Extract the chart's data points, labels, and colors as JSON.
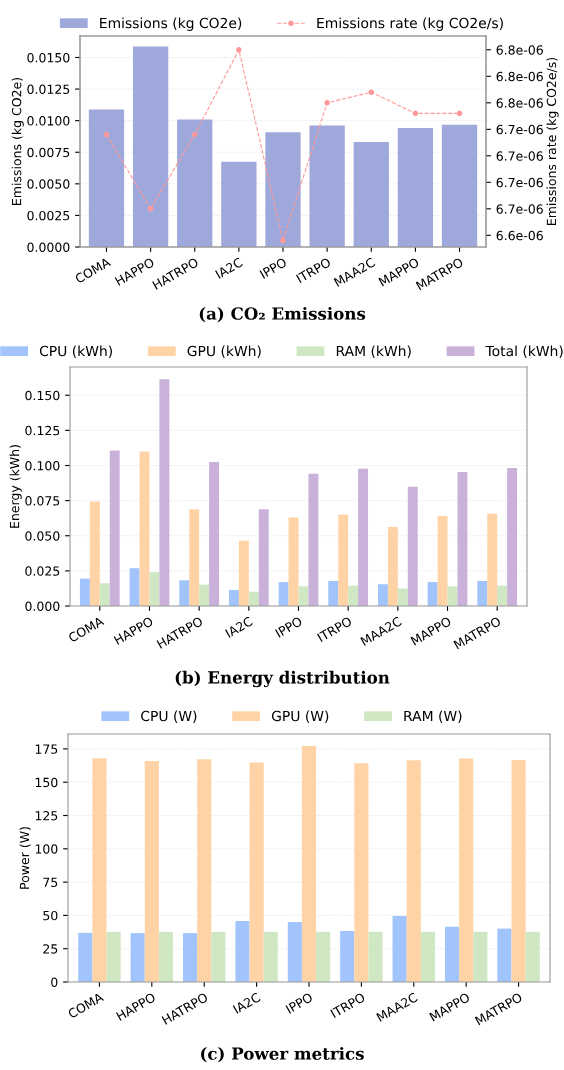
{
  "chart_data": [
    {
      "type": "bar",
      "title": "(a) CO₂ Emissions",
      "ylabel": "Emissions (kg CO2e)",
      "y2label": "Emissions rate (kg CO2e/s)",
      "categories": [
        "COMA",
        "HAPPO",
        "HATRPO",
        "IA2C",
        "IPPO",
        "ITRPO",
        "MAA2C",
        "MAPPO",
        "MATRPO"
      ],
      "series": [
        {
          "name": "Emissions (kg CO2e)",
          "type": "bar",
          "color": "#9fa8da",
          "values": [
            0.01088,
            0.01587,
            0.01009,
            0.00674,
            0.00908,
            0.00961,
            0.00832,
            0.00942,
            0.00967
          ]
        },
        {
          "name": "Emissions rate (kg CO2e/s)",
          "type": "line",
          "axis": "y2",
          "color": "#ff9999",
          "marker": "circle",
          "line_style": "dashed",
          "values": [
            6.72e-06,
            6.65e-06,
            6.72e-06,
            6.8e-06,
            6.62e-06,
            6.75e-06,
            6.76e-06,
            6.74e-06,
            6.74e-06
          ]
        }
      ],
      "ylim": [
        0,
        0.0167
      ],
      "yticks": [
        {
          "value": 0,
          "label": "0.0000"
        },
        {
          "value": 0.0025,
          "label": "0.0025"
        },
        {
          "value": 0.005,
          "label": "0.0050"
        },
        {
          "value": 0.0075,
          "label": "0.0075"
        },
        {
          "value": 0.01,
          "label": "0.0100"
        },
        {
          "value": 0.0125,
          "label": "0.0125"
        },
        {
          "value": 0.015,
          "label": "0.0150"
        }
      ],
      "y2lim": [
        6.614e-06,
        6.813e-06
      ],
      "y2ticks": [
        {
          "value": 6.625e-06,
          "label": "6.6e-06"
        },
        {
          "value": 6.65e-06,
          "label": "6.7e-06"
        },
        {
          "value": 6.675e-06,
          "label": "6.7e-06"
        },
        {
          "value": 6.7e-06,
          "label": "6.7e-06"
        },
        {
          "value": 6.725e-06,
          "label": "6.7e-06"
        },
        {
          "value": 6.75e-06,
          "label": "6.8e-06"
        },
        {
          "value": 6.775e-06,
          "label": "6.8e-06"
        },
        {
          "value": 6.8e-06,
          "label": "6.8e-06"
        }
      ],
      "grid": "y",
      "legend": "top"
    },
    {
      "type": "bar",
      "title": "(b) Energy distribution",
      "ylabel": "Energy (kWh)",
      "categories": [
        "COMA",
        "HAPPO",
        "HATRPO",
        "IA2C",
        "IPPO",
        "ITRPO",
        "MAA2C",
        "MAPPO",
        "MATRPO"
      ],
      "series": [
        {
          "name": "CPU (kWh)",
          "color": "#a1c4fd",
          "values": [
            0.0195,
            0.0269,
            0.0183,
            0.0114,
            0.017,
            0.0178,
            0.0155,
            0.017,
            0.0178
          ]
        },
        {
          "name": "GPU (kWh)",
          "color": "#ffd3a5",
          "values": [
            0.0744,
            0.1099,
            0.0688,
            0.0464,
            0.0629,
            0.0652,
            0.0563,
            0.064,
            0.0657
          ]
        },
        {
          "name": "RAM (kWh)",
          "color": "#cfe7c3",
          "values": [
            0.0162,
            0.0241,
            0.0152,
            0.0102,
            0.014,
            0.0145,
            0.0124,
            0.014,
            0.0145
          ]
        },
        {
          "name": "Total (kWh)",
          "color": "#c9b1da",
          "values": [
            0.1107,
            0.1614,
            0.1025,
            0.0688,
            0.0942,
            0.0977,
            0.0848,
            0.0954,
            0.0982
          ]
        }
      ],
      "ylim": [
        0,
        0.1701
      ],
      "yticks": [
        {
          "value": 0,
          "label": "0.000"
        },
        {
          "value": 0.025,
          "label": "0.025"
        },
        {
          "value": 0.05,
          "label": "0.050"
        },
        {
          "value": 0.075,
          "label": "0.075"
        },
        {
          "value": 0.1,
          "label": "0.100"
        },
        {
          "value": 0.125,
          "label": "0.125"
        },
        {
          "value": 0.15,
          "label": "0.150"
        }
      ],
      "grid": "y",
      "legend": "top"
    },
    {
      "type": "bar",
      "title": "(c) Power metrics",
      "ylabel": "Power (W)",
      "categories": [
        "COMA",
        "HAPPO",
        "HATRPO",
        "IA2C",
        "IPPO",
        "ITRPO",
        "MAA2C",
        "MAPPO",
        "MATRPO"
      ],
      "series": [
        {
          "name": "CPU (W)",
          "color": "#a1c4fd",
          "values": [
            36.9,
            36.7,
            36.7,
            45.8,
            45.0,
            38.3,
            49.5,
            41.5,
            40.1
          ]
        },
        {
          "name": "GPU (W)",
          "color": "#ffd3a5",
          "values": [
            168.0,
            165.9,
            167.2,
            164.8,
            177.1,
            164.3,
            166.4,
            167.8,
            166.7
          ]
        },
        {
          "name": "RAM (W)",
          "color": "#cfe7c3",
          "values": [
            37.7,
            37.7,
            37.7,
            37.7,
            37.7,
            37.7,
            37.7,
            37.7,
            37.7
          ]
        }
      ],
      "ylim": [
        0,
        186.2
      ],
      "yticks": [
        0,
        25,
        50,
        75,
        100,
        125,
        150,
        175
      ],
      "grid": "y",
      "legend": "top"
    }
  ]
}
